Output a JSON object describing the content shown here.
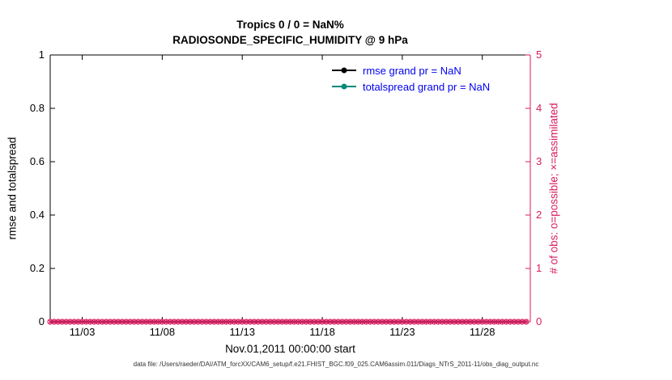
{
  "footer": "data file: /Users/raeder/DAI/ATM_forcXX/CAM6_setup/f.e21.FHIST_BGC.f09_025.CAM6assim.011/Diags_NTrS_2011-11/obs_diag_output.nc",
  "legend": {
    "text_color": "#0000ee",
    "items": [
      {
        "label": "rmse grand pr = NaN",
        "line_color": "#000000",
        "marker": "filled-circle"
      },
      {
        "label": "totalspread grand pr = NaN",
        "line_color": "#00897b",
        "marker": "filled-circle"
      }
    ]
  },
  "chart_data": {
    "type": "line",
    "title_lines": [
      "Tropics 0 / 0 = NaN%",
      "RADIOSONDE_SPECIFIC_HUMIDITY @ 9 hPa"
    ],
    "xlabel": "Nov.01,2011 00:00:00 start",
    "ylabel_left": "rmse and totalspread",
    "ylabel_right": "# of obs: o=possible; ×=assimilated",
    "x_domain_days": [
      1,
      31
    ],
    "x_ticks": [
      {
        "pos_day": 3,
        "label": "11/03"
      },
      {
        "pos_day": 8,
        "label": "11/08"
      },
      {
        "pos_day": 13,
        "label": "11/13"
      },
      {
        "pos_day": 18,
        "label": "11/18"
      },
      {
        "pos_day": 23,
        "label": "11/23"
      },
      {
        "pos_day": 28,
        "label": "11/28"
      }
    ],
    "ylim_left": [
      0,
      1
    ],
    "yticks_left": [
      0,
      0.2,
      0.4,
      0.6,
      0.8,
      1
    ],
    "ylim_right": [
      0,
      5
    ],
    "yticks_right": [
      0,
      1,
      2,
      3,
      4,
      5
    ],
    "axis_color_left": "#000000",
    "axis_color_right": "#d81b60",
    "grid": false,
    "legend_position": "top-right-inside",
    "series": [
      {
        "name": "rmse grand pr = NaN",
        "color": "#000000",
        "all_nan": true,
        "values": []
      },
      {
        "name": "totalspread grand pr = NaN",
        "color": "#00897b",
        "all_nan": true,
        "values": []
      }
    ],
    "obs_counts": {
      "color": "#d81b60",
      "possible_value": 0,
      "assimilated_value": 0,
      "start_day": 1.0,
      "interval_days": 0.25,
      "n_times": 120,
      "marker_possible": "o",
      "marker_assimilated": "asterisk"
    }
  }
}
